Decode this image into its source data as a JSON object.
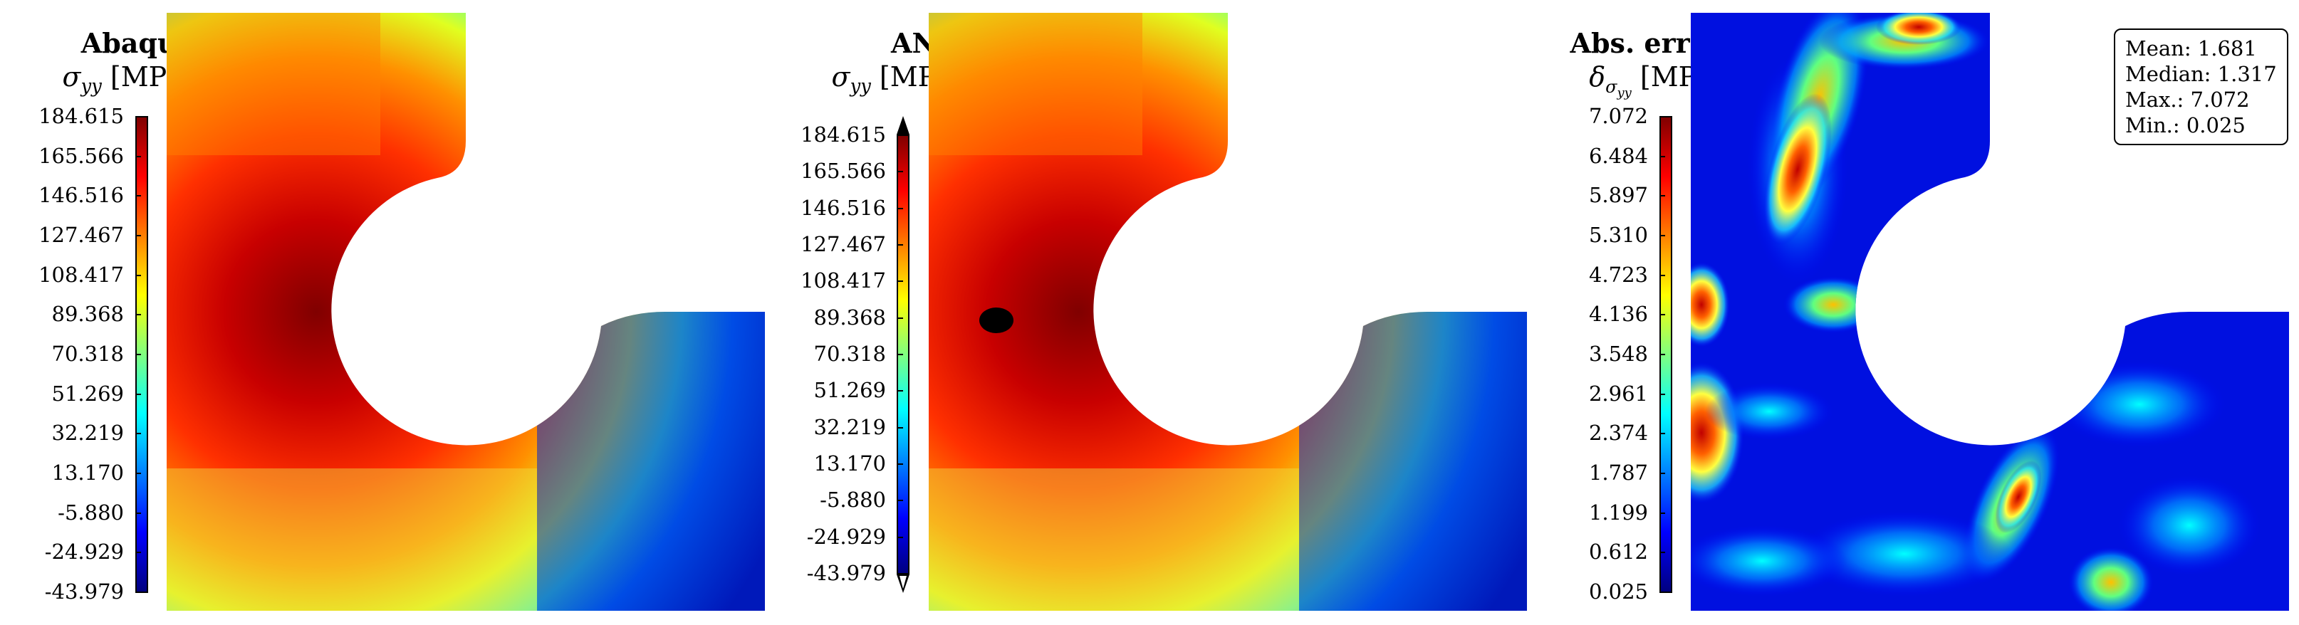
{
  "panels": [
    {
      "id": "abaqus",
      "title": "Abaqus",
      "subtitle": "σyy [MPa]",
      "colorbar_ticks": [
        "184.615",
        "165.566",
        "146.516",
        "127.467",
        "108.417",
        "89.368",
        "70.318",
        "51.269",
        "32.219",
        "13.170",
        "-5.880",
        "-24.929",
        "-43.979"
      ],
      "extend_arrows": false
    },
    {
      "id": "ann",
      "title": "ANN",
      "subtitle": "σyy [MPa]",
      "colorbar_ticks": [
        "184.615",
        "165.566",
        "146.516",
        "127.467",
        "108.417",
        "89.368",
        "70.318",
        "51.269",
        "32.219",
        "13.170",
        "-5.880",
        "-24.929",
        "-43.979"
      ],
      "extend_arrows": true
    },
    {
      "id": "error",
      "title": "Abs. error",
      "subtitle": "δσyy [MPa]",
      "colorbar_ticks": [
        "7.072",
        "6.484",
        "5.897",
        "5.310",
        "4.723",
        "4.136",
        "3.548",
        "2.961",
        "2.374",
        "1.787",
        "1.199",
        "0.612",
        "0.025"
      ],
      "extend_arrows": false
    }
  ],
  "stats": {
    "mean": "Mean: 1.681",
    "median": "Median: 1.317",
    "max": "Max.: 7.072",
    "min": "Min.: 0.025"
  },
  "colormap": "jet",
  "chart_data": [
    {
      "type": "heatmap",
      "title": "Abaqus",
      "ylabel": "σyy [MPa]",
      "colorbar_range": [
        -43.979,
        184.615
      ]
    },
    {
      "type": "heatmap",
      "title": "ANN",
      "ylabel": "σyy [MPa]",
      "colorbar_range": [
        -43.979,
        184.615
      ]
    },
    {
      "type": "heatmap",
      "title": "Abs. error",
      "ylabel": "δσyy [MPa]",
      "colorbar_range": [
        0.025,
        7.072
      ],
      "stats": {
        "mean": 1.681,
        "median": 1.317,
        "max": 7.072,
        "min": 0.025
      }
    }
  ]
}
